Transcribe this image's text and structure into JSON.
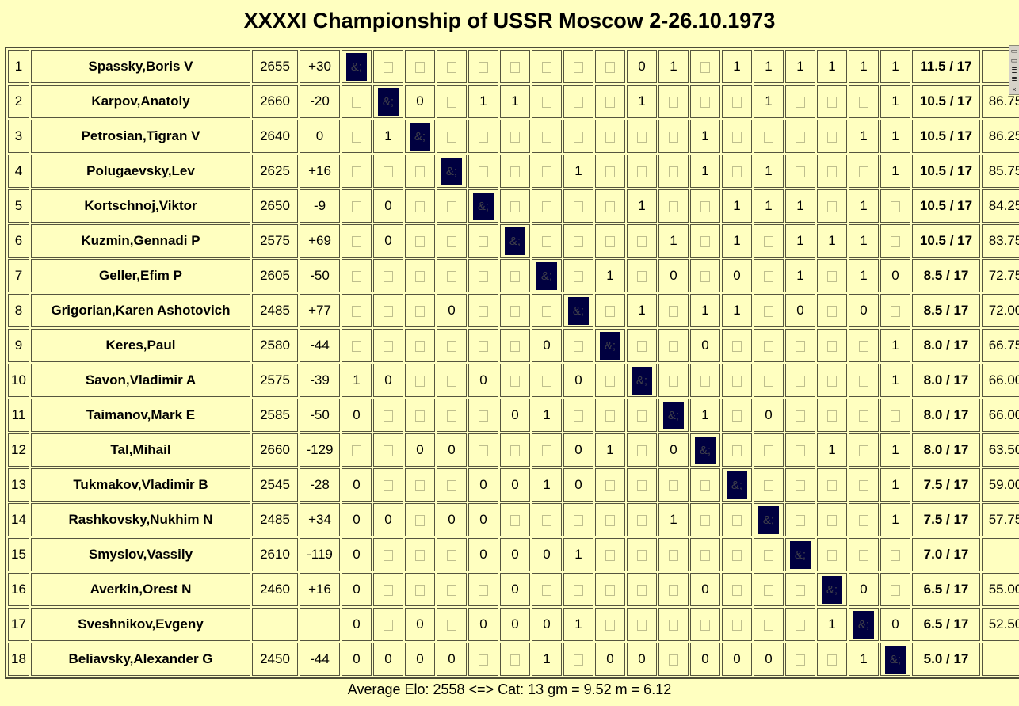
{
  "title": "XXXXI Championship of USSR Moscow 2-26.10.1973",
  "footer": "Average Elo: 2558 <=> Cat: 13 gm = 9.52 m = 6.12",
  "colors": {
    "page_background": "#FFFFC0",
    "cell_border": "#55553F",
    "diagonal_block": "#000040",
    "draw_glyph": "#BFBF8E"
  },
  "edge_widget": {
    "glyphs": [
      "▭",
      "▭",
      "≣",
      "≣",
      "×"
    ]
  },
  "crosstable": {
    "diagonal_text": "&;",
    "games_total": "17",
    "players": [
      {
        "rank": "1",
        "name": "Spassky,Boris V",
        "elo": "2655",
        "change": "+30",
        "results": [
          "X",
          "=",
          "=",
          "=",
          "=",
          "=",
          "=",
          "=",
          "=",
          "0",
          "1",
          "=",
          "1",
          "1",
          "1",
          "1",
          "1",
          "1"
        ],
        "score": "11.5 / 17",
        "tiebreak": ""
      },
      {
        "rank": "2",
        "name": "Karpov,Anatoly",
        "elo": "2660",
        "change": "-20",
        "results": [
          "=",
          "X",
          "0",
          "=",
          "1",
          "1",
          "=",
          "=",
          "=",
          "1",
          "=",
          "=",
          "=",
          "1",
          "=",
          "=",
          "=",
          "1"
        ],
        "score": "10.5 / 17",
        "tiebreak": "86.75"
      },
      {
        "rank": "3",
        "name": "Petrosian,Tigran V",
        "elo": "2640",
        "change": "0",
        "results": [
          "=",
          "1",
          "X",
          "=",
          "=",
          "=",
          "=",
          "=",
          "=",
          "=",
          "=",
          "1",
          "=",
          "=",
          "=",
          "=",
          "1",
          "1"
        ],
        "score": "10.5 / 17",
        "tiebreak": "86.25"
      },
      {
        "rank": "4",
        "name": "Polugaevsky,Lev",
        "elo": "2625",
        "change": "+16",
        "results": [
          "=",
          "=",
          "=",
          "X",
          "=",
          "=",
          "=",
          "1",
          "=",
          "=",
          "=",
          "1",
          "=",
          "1",
          "=",
          "=",
          "=",
          "1"
        ],
        "score": "10.5 / 17",
        "tiebreak": "85.75"
      },
      {
        "rank": "5",
        "name": "Kortschnoj,Viktor",
        "elo": "2650",
        "change": "-9",
        "results": [
          "=",
          "0",
          "=",
          "=",
          "X",
          "=",
          "=",
          "=",
          "=",
          "1",
          "=",
          "=",
          "1",
          "1",
          "1",
          "=",
          "1",
          "="
        ],
        "score": "10.5 / 17",
        "tiebreak": "84.25"
      },
      {
        "rank": "6",
        "name": "Kuzmin,Gennadi P",
        "elo": "2575",
        "change": "+69",
        "results": [
          "=",
          "0",
          "=",
          "=",
          "=",
          "X",
          "=",
          "=",
          "=",
          "=",
          "1",
          "=",
          "1",
          "=",
          "1",
          "1",
          "1",
          "="
        ],
        "score": "10.5 / 17",
        "tiebreak": "83.75"
      },
      {
        "rank": "7",
        "name": "Geller,Efim P",
        "elo": "2605",
        "change": "-50",
        "results": [
          "=",
          "=",
          "=",
          "=",
          "=",
          "=",
          "X",
          "=",
          "1",
          "=",
          "0",
          "=",
          "0",
          "=",
          "1",
          "=",
          "1",
          "0"
        ],
        "score": "8.5 / 17",
        "tiebreak": "72.75"
      },
      {
        "rank": "8",
        "name": "Grigorian,Karen Ashotovich",
        "elo": "2485",
        "change": "+77",
        "results": [
          "=",
          "=",
          "=",
          "0",
          "=",
          "=",
          "=",
          "X",
          "=",
          "1",
          "=",
          "1",
          "1",
          "=",
          "0",
          "=",
          "0",
          "="
        ],
        "score": "8.5 / 17",
        "tiebreak": "72.00"
      },
      {
        "rank": "9",
        "name": "Keres,Paul",
        "elo": "2580",
        "change": "-44",
        "results": [
          "=",
          "=",
          "=",
          "=",
          "=",
          "=",
          "0",
          "=",
          "X",
          "=",
          "=",
          "0",
          "=",
          "=",
          "=",
          "=",
          "=",
          "1"
        ],
        "score": "8.0 / 17",
        "tiebreak": "66.75"
      },
      {
        "rank": "10",
        "name": "Savon,Vladimir A",
        "elo": "2575",
        "change": "-39",
        "results": [
          "1",
          "0",
          "=",
          "=",
          "0",
          "=",
          "=",
          "0",
          "=",
          "X",
          "=",
          "=",
          "=",
          "=",
          "=",
          "=",
          "=",
          "1"
        ],
        "score": "8.0 / 17",
        "tiebreak": "66.00"
      },
      {
        "rank": "11",
        "name": "Taimanov,Mark E",
        "elo": "2585",
        "change": "-50",
        "results": [
          "0",
          "=",
          "=",
          "=",
          "=",
          "0",
          "1",
          "=",
          "=",
          "=",
          "X",
          "1",
          "=",
          "0",
          "=",
          "=",
          "=",
          "="
        ],
        "score": "8.0 / 17",
        "tiebreak": "66.00"
      },
      {
        "rank": "12",
        "name": "Tal,Mihail",
        "elo": "2660",
        "change": "-129",
        "results": [
          "=",
          "=",
          "0",
          "0",
          "=",
          "=",
          "=",
          "0",
          "1",
          "=",
          "0",
          "X",
          "=",
          "=",
          "=",
          "1",
          "=",
          "1"
        ],
        "score": "8.0 / 17",
        "tiebreak": "63.50"
      },
      {
        "rank": "13",
        "name": "Tukmakov,Vladimir B",
        "elo": "2545",
        "change": "-28",
        "results": [
          "0",
          "=",
          "=",
          "=",
          "0",
          "0",
          "1",
          "0",
          "=",
          "=",
          "=",
          "=",
          "X",
          "=",
          "=",
          "=",
          "=",
          "1"
        ],
        "score": "7.5 / 17",
        "tiebreak": "59.00"
      },
      {
        "rank": "14",
        "name": "Rashkovsky,Nukhim N",
        "elo": "2485",
        "change": "+34",
        "results": [
          "0",
          "0",
          "=",
          "0",
          "0",
          "=",
          "=",
          "=",
          "=",
          "=",
          "1",
          "=",
          "=",
          "X",
          "=",
          "=",
          "=",
          "1"
        ],
        "score": "7.5 / 17",
        "tiebreak": "57.75"
      },
      {
        "rank": "15",
        "name": "Smyslov,Vassily",
        "elo": "2610",
        "change": "-119",
        "results": [
          "0",
          "=",
          "=",
          "=",
          "0",
          "0",
          "0",
          "1",
          "=",
          "=",
          "=",
          "=",
          "=",
          "=",
          "X",
          "=",
          "=",
          "="
        ],
        "score": "7.0 / 17",
        "tiebreak": ""
      },
      {
        "rank": "16",
        "name": "Averkin,Orest N",
        "elo": "2460",
        "change": "+16",
        "results": [
          "0",
          "=",
          "=",
          "=",
          "=",
          "0",
          "=",
          "=",
          "=",
          "=",
          "=",
          "0",
          "=",
          "=",
          "=",
          "X",
          "0",
          "="
        ],
        "score": "6.5 / 17",
        "tiebreak": "55.00"
      },
      {
        "rank": "17",
        "name": "Sveshnikov,Evgeny",
        "elo": "",
        "change": "",
        "results": [
          "0",
          "=",
          "0",
          "=",
          "0",
          "0",
          "0",
          "1",
          "=",
          "=",
          "=",
          "=",
          "=",
          "=",
          "=",
          "1",
          "X",
          "0"
        ],
        "score": "6.5 / 17",
        "tiebreak": "52.50"
      },
      {
        "rank": "18",
        "name": "Beliavsky,Alexander G",
        "elo": "2450",
        "change": "-44",
        "results": [
          "0",
          "0",
          "0",
          "0",
          "=",
          "=",
          "1",
          "=",
          "0",
          "0",
          "=",
          "0",
          "0",
          "0",
          "=",
          "=",
          "1",
          "X"
        ],
        "score": "5.0 / 17",
        "tiebreak": ""
      }
    ]
  }
}
